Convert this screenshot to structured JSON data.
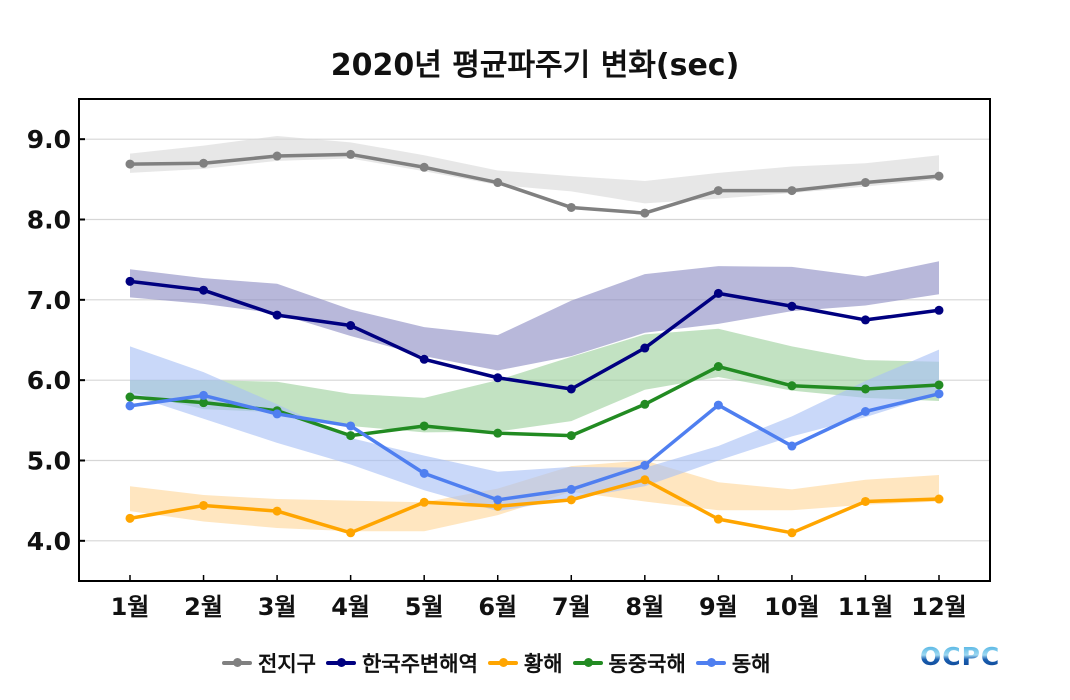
{
  "chart_data": {
    "type": "line",
    "title": "2020년 평균파주기 변화(sec)",
    "xlabel": "",
    "ylabel": "",
    "ylim": [
      3.5,
      9.5
    ],
    "yticks": [
      "4.0",
      "5.0",
      "6.0",
      "7.0",
      "8.0",
      "9.0"
    ],
    "ytick_values": [
      4.0,
      5.0,
      6.0,
      7.0,
      8.0,
      9.0
    ],
    "grid": true,
    "legend_position": "bottom",
    "categories": [
      "1월",
      "2월",
      "3월",
      "4월",
      "5월",
      "6월",
      "7월",
      "8월",
      "9월",
      "10월",
      "11월",
      "12월"
    ],
    "series": [
      {
        "name": "전지구",
        "color": "#808080",
        "band_color": "#d9d9d9",
        "values": [
          8.69,
          8.7,
          8.79,
          8.81,
          8.65,
          8.46,
          8.15,
          8.08,
          8.36,
          8.36,
          8.46,
          8.54
        ],
        "band_upper": [
          8.82,
          8.92,
          9.04,
          8.96,
          8.8,
          8.61,
          8.54,
          8.48,
          8.58,
          8.66,
          8.7,
          8.8
        ],
        "band_lower": [
          8.58,
          8.63,
          8.73,
          8.76,
          8.6,
          8.43,
          8.35,
          8.2,
          8.26,
          8.33,
          8.41,
          8.5
        ]
      },
      {
        "name": "한국주변해역",
        "color": "#000080",
        "band_color": "#8c8cc4",
        "values": [
          7.23,
          7.12,
          6.81,
          6.68,
          6.26,
          6.03,
          5.89,
          6.4,
          7.08,
          6.92,
          6.75,
          6.87
        ],
        "band_upper": [
          7.38,
          7.27,
          7.2,
          6.88,
          6.66,
          6.56,
          6.99,
          7.32,
          7.42,
          7.41,
          7.29,
          7.48
        ],
        "band_lower": [
          7.03,
          6.95,
          6.83,
          6.55,
          6.3,
          6.12,
          6.3,
          6.59,
          6.7,
          6.86,
          6.93,
          7.07
        ]
      },
      {
        "name": "황해",
        "color": "#ffa500",
        "band_color": "#ffd699",
        "values": [
          4.28,
          4.44,
          4.37,
          4.1,
          4.48,
          4.43,
          4.51,
          4.76,
          4.27,
          4.1,
          4.49,
          4.52
        ],
        "band_upper": [
          4.68,
          4.57,
          4.52,
          4.5,
          4.48,
          4.65,
          4.93,
          5.0,
          4.73,
          4.64,
          4.76,
          4.82
        ],
        "band_lower": [
          4.37,
          4.24,
          4.16,
          4.12,
          4.12,
          4.32,
          4.61,
          4.49,
          4.38,
          4.38,
          4.45,
          4.49
        ]
      },
      {
        "name": "동중국해",
        "color": "#228b22",
        "band_color": "#9dd09d",
        "values": [
          5.79,
          5.72,
          5.62,
          5.31,
          5.43,
          5.34,
          5.31,
          5.7,
          6.17,
          5.93,
          5.89,
          5.94
        ],
        "band_upper": [
          6.0,
          6.0,
          5.98,
          5.83,
          5.78,
          6.0,
          6.29,
          6.57,
          6.64,
          6.42,
          6.25,
          6.23
        ],
        "band_lower": [
          5.85,
          5.64,
          5.6,
          5.43,
          5.35,
          5.36,
          5.49,
          5.88,
          6.04,
          5.87,
          5.78,
          5.74
        ]
      },
      {
        "name": "동해",
        "color": "#4f7ff0",
        "band_color": "#a8c0f5",
        "values": [
          5.68,
          5.81,
          5.58,
          5.43,
          4.84,
          4.51,
          4.64,
          4.94,
          5.69,
          5.18,
          5.61,
          5.83
        ],
        "band_upper": [
          6.42,
          6.1,
          5.7,
          5.28,
          5.06,
          4.86,
          4.92,
          4.91,
          5.18,
          5.55,
          5.99,
          6.38
        ],
        "band_lower": [
          5.82,
          5.52,
          5.22,
          4.95,
          4.63,
          4.37,
          4.52,
          4.68,
          5.0,
          5.3,
          5.54,
          5.83
        ]
      }
    ]
  },
  "logo": {
    "text": "OCPC"
  }
}
